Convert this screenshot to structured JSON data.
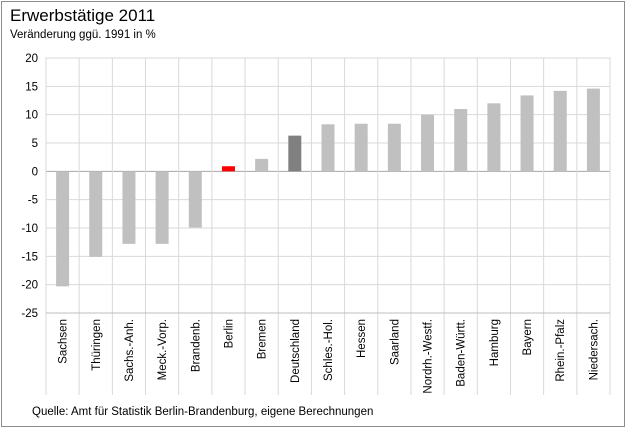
{
  "chart_data": {
    "type": "bar",
    "title": "Erwerbstätige 2011",
    "subtitle": "Veränderung ggü. 1991 in %",
    "source": "Quelle: Amt für Statistik Berlin-Brandenburg, eigene Berechnungen",
    "categories": [
      "Sachsen",
      "Thüringen",
      "Sachs.-Anh.",
      "Meck.-Vorp.",
      "Brandenb.",
      "Berlin",
      "Bremen",
      "Deutschland",
      "Schles.-Hol.",
      "Hessen",
      "Saarland",
      "Nordrh.-Westf.",
      "Baden-Württ.",
      "Hamburg",
      "Bayern",
      "Rhein.-Pfalz",
      "Niedersach."
    ],
    "values": [
      -20.3,
      -15.1,
      -12.8,
      -12.8,
      -9.9,
      0.9,
      2.2,
      6.3,
      8.3,
      8.4,
      8.4,
      10.0,
      11.0,
      12.0,
      13.4,
      14.2,
      14.6
    ],
    "colors": [
      "#c0c0c0",
      "#c0c0c0",
      "#c0c0c0",
      "#c0c0c0",
      "#c0c0c0",
      "#ff0000",
      "#c0c0c0",
      "#808080",
      "#c0c0c0",
      "#c0c0c0",
      "#c0c0c0",
      "#c0c0c0",
      "#c0c0c0",
      "#c0c0c0",
      "#c0c0c0",
      "#c0c0c0",
      "#c0c0c0"
    ],
    "ylim": [
      -25,
      20
    ],
    "yticks": [
      20,
      15,
      10,
      5,
      0,
      -5,
      -10,
      -15,
      -20,
      -25
    ],
    "grid": true,
    "xlabel": "",
    "ylabel": ""
  }
}
